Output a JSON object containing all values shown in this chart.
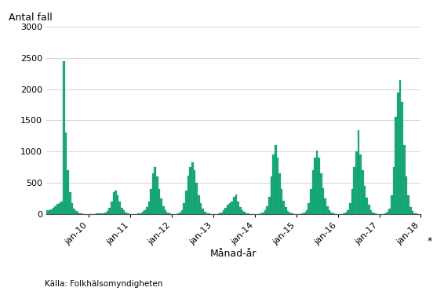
{
  "ylabel": "Antal fall",
  "xlabel": "Månad-år",
  "source": "Källa: Folkhälsomyndigheten",
  "ylim": [
    0,
    3000
  ],
  "yticks": [
    0,
    500,
    1000,
    1500,
    2000,
    2500,
    3000
  ],
  "bar_color": "#1aab78",
  "bar_edge_color": "#008a5a",
  "background_color": "#ffffff",
  "xtick_labels": [
    "jan-10",
    "jan-11",
    "jan-12",
    "jan-13",
    "jan-14",
    "jan-15",
    "jan-16",
    "jan-17",
    "jan-18"
  ],
  "asterisk_label": "*",
  "values": [
    60,
    70,
    80,
    100,
    130,
    160,
    180,
    200,
    2450,
    1300,
    700,
    350,
    180,
    90,
    50,
    30,
    15,
    10,
    5,
    5,
    5,
    5,
    5,
    8,
    10,
    12,
    15,
    20,
    30,
    50,
    100,
    200,
    350,
    380,
    300,
    200,
    100,
    60,
    30,
    15,
    8,
    5,
    5,
    8,
    12,
    20,
    35,
    70,
    120,
    200,
    400,
    650,
    750,
    600,
    400,
    250,
    130,
    60,
    25,
    12,
    8,
    5,
    8,
    15,
    30,
    70,
    180,
    380,
    620,
    750,
    830,
    700,
    500,
    300,
    180,
    90,
    45,
    20,
    10,
    8,
    5,
    5,
    8,
    15,
    30,
    60,
    100,
    150,
    180,
    200,
    280,
    320,
    200,
    120,
    70,
    40,
    20,
    12,
    8,
    5,
    5,
    5,
    8,
    15,
    30,
    60,
    130,
    280,
    600,
    950,
    1100,
    900,
    650,
    400,
    220,
    110,
    50,
    25,
    12,
    8,
    5,
    5,
    8,
    15,
    30,
    70,
    180,
    400,
    700,
    900,
    1020,
    900,
    650,
    420,
    250,
    130,
    60,
    25,
    12,
    8,
    5,
    5,
    8,
    15,
    30,
    70,
    180,
    400,
    750,
    1000,
    1340,
    950,
    700,
    450,
    270,
    150,
    70,
    30,
    15,
    8,
    5,
    5,
    8,
    15,
    35,
    90,
    300,
    750,
    1550,
    1950,
    2150,
    1800,
    1100,
    600,
    300,
    120,
    50,
    20,
    10,
    8
  ],
  "n_points_per_season": 20,
  "season_start_indices": [
    0,
    20,
    40,
    60,
    80,
    100,
    120,
    140,
    160,
    180
  ]
}
